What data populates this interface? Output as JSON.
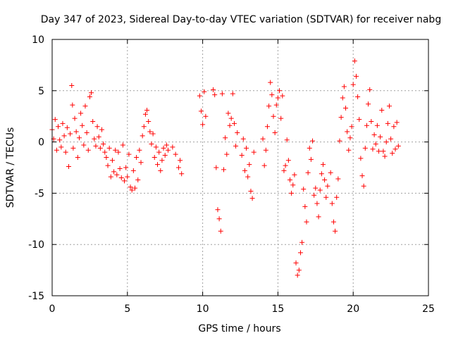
{
  "chart_data": {
    "type": "scatter",
    "title": "Day 347 of 2023, Sidereal Day-to-day VTEC variation (SDTVAR) for receiver nabg",
    "xlabel": "GPS time / hours",
    "ylabel": "SDTVAR / TECUs",
    "xlim": [
      0,
      25
    ],
    "ylim": [
      -15,
      10
    ],
    "grid": true,
    "x_ticks": [
      0,
      5,
      10,
      15,
      20,
      25
    ],
    "x_tick_labels": [
      "0",
      "5",
      "10",
      "15",
      "20",
      "25"
    ],
    "y_ticks": [
      -15,
      -10,
      -5,
      0,
      5,
      10
    ],
    "y_tick_labels": [
      "-15",
      "-10",
      "-5",
      "0",
      "5",
      "10"
    ],
    "marker": "+",
    "series": [
      {
        "name": "SDTVAR",
        "color": "#ff0000",
        "points": [
          [
            0.0,
            1.2
          ],
          [
            0.1,
            0.3
          ],
          [
            0.2,
            2.2
          ],
          [
            0.3,
            -0.8
          ],
          [
            0.4,
            1.5
          ],
          [
            0.5,
            0.2
          ],
          [
            0.6,
            -0.5
          ],
          [
            0.7,
            1.8
          ],
          [
            0.8,
            0.6
          ],
          [
            0.9,
            -1.0
          ],
          [
            1.0,
            1.4
          ],
          [
            1.1,
            -2.4
          ],
          [
            1.2,
            0.8
          ],
          [
            1.3,
            5.5
          ],
          [
            1.35,
            3.6
          ],
          [
            1.4,
            -0.6
          ],
          [
            1.5,
            2.3
          ],
          [
            1.6,
            1.0
          ],
          [
            1.7,
            -1.5
          ],
          [
            1.8,
            0.4
          ],
          [
            1.9,
            2.8
          ],
          [
            2.0,
            1.6
          ],
          [
            2.1,
            -0.3
          ],
          [
            2.2,
            3.5
          ],
          [
            2.3,
            0.9
          ],
          [
            2.4,
            -0.8
          ],
          [
            2.5,
            4.4
          ],
          [
            2.6,
            4.8
          ],
          [
            2.7,
            2.0
          ],
          [
            2.8,
            0.3
          ],
          [
            2.9,
            -0.4
          ],
          [
            3.0,
            1.5
          ],
          [
            3.1,
            0.5
          ],
          [
            3.2,
            -0.6
          ],
          [
            3.3,
            1.2
          ],
          [
            3.4,
            -0.2
          ],
          [
            3.5,
            -1.0
          ],
          [
            3.6,
            -1.5
          ],
          [
            3.7,
            -2.3
          ],
          [
            3.8,
            -0.6
          ],
          [
            3.9,
            -3.4
          ],
          [
            4.0,
            -1.8
          ],
          [
            4.1,
            -2.9
          ],
          [
            4.2,
            -0.8
          ],
          [
            4.3,
            -3.2
          ],
          [
            4.4,
            -1.0
          ],
          [
            4.5,
            -2.6
          ],
          [
            4.6,
            -3.5
          ],
          [
            4.7,
            -0.3
          ],
          [
            4.8,
            -3.8
          ],
          [
            4.9,
            -2.5
          ],
          [
            5.0,
            -3.4
          ],
          [
            5.1,
            -1.2
          ],
          [
            5.2,
            -4.4
          ],
          [
            5.3,
            -4.7
          ],
          [
            5.4,
            -2.8
          ],
          [
            5.5,
            -4.5
          ],
          [
            5.6,
            -1.5
          ],
          [
            5.7,
            -3.7
          ],
          [
            5.8,
            -0.8
          ],
          [
            5.9,
            -2.0
          ],
          [
            6.0,
            0.6
          ],
          [
            6.1,
            1.5
          ],
          [
            6.2,
            2.7
          ],
          [
            6.3,
            3.1
          ],
          [
            6.4,
            2.0
          ],
          [
            6.5,
            1.0
          ],
          [
            6.6,
            -0.2
          ],
          [
            6.7,
            0.8
          ],
          [
            6.8,
            -1.5
          ],
          [
            6.9,
            -0.5
          ],
          [
            7.0,
            -2.2
          ],
          [
            7.1,
            -1.0
          ],
          [
            7.2,
            -2.8
          ],
          [
            7.3,
            -1.8
          ],
          [
            7.4,
            -0.6
          ],
          [
            7.5,
            -1.3
          ],
          [
            7.6,
            -0.3
          ],
          [
            7.7,
            -0.8
          ],
          [
            8.0,
            -0.5
          ],
          [
            8.2,
            -1.2
          ],
          [
            8.4,
            -2.5
          ],
          [
            8.5,
            -1.8
          ],
          [
            8.6,
            -3.1
          ],
          [
            9.8,
            4.5
          ],
          [
            9.9,
            3.0
          ],
          [
            10.0,
            1.7
          ],
          [
            10.1,
            4.9
          ],
          [
            10.2,
            2.5
          ],
          [
            10.7,
            5.1
          ],
          [
            10.8,
            4.6
          ],
          [
            10.9,
            -2.5
          ],
          [
            11.0,
            -6.6
          ],
          [
            11.1,
            -7.5
          ],
          [
            11.2,
            -8.7
          ],
          [
            11.3,
            4.7
          ],
          [
            11.4,
            -2.7
          ],
          [
            11.5,
            0.4
          ],
          [
            11.6,
            -1.2
          ],
          [
            11.7,
            2.8
          ],
          [
            11.8,
            1.6
          ],
          [
            11.9,
            2.3
          ],
          [
            12.0,
            4.7
          ],
          [
            12.1,
            1.8
          ],
          [
            12.2,
            -0.4
          ],
          [
            12.3,
            0.9
          ],
          [
            12.6,
            -1.3
          ],
          [
            12.7,
            0.3
          ],
          [
            12.8,
            -2.8
          ],
          [
            12.9,
            -0.6
          ],
          [
            13.0,
            -3.4
          ],
          [
            13.1,
            -2.2
          ],
          [
            13.2,
            -4.8
          ],
          [
            13.3,
            -5.5
          ],
          [
            13.4,
            -1.0
          ],
          [
            14.0,
            0.3
          ],
          [
            14.1,
            -2.3
          ],
          [
            14.2,
            -0.8
          ],
          [
            14.3,
            1.5
          ],
          [
            14.4,
            3.5
          ],
          [
            14.5,
            5.8
          ],
          [
            14.6,
            4.6
          ],
          [
            14.7,
            2.5
          ],
          [
            14.8,
            0.9
          ],
          [
            14.9,
            3.6
          ],
          [
            15.0,
            4.3
          ],
          [
            15.1,
            5.0
          ],
          [
            15.2,
            2.3
          ],
          [
            15.3,
            4.5
          ],
          [
            15.4,
            -2.8
          ],
          [
            15.5,
            -2.3
          ],
          [
            15.6,
            0.2
          ],
          [
            15.7,
            -1.8
          ],
          [
            15.8,
            -3.7
          ],
          [
            15.9,
            -5.0
          ],
          [
            16.0,
            -4.2
          ],
          [
            16.1,
            -3.2
          ],
          [
            16.2,
            -11.8
          ],
          [
            16.3,
            -13.0
          ],
          [
            16.4,
            -12.5
          ],
          [
            16.5,
            -10.8
          ],
          [
            16.6,
            -9.8
          ],
          [
            16.7,
            -4.6
          ],
          [
            16.8,
            -6.3
          ],
          [
            16.9,
            -7.8
          ],
          [
            17.0,
            -3.0
          ],
          [
            17.1,
            -0.6
          ],
          [
            17.2,
            -1.7
          ],
          [
            17.3,
            0.1
          ],
          [
            17.4,
            -5.2
          ],
          [
            17.5,
            -4.5
          ],
          [
            17.6,
            -6.0
          ],
          [
            17.7,
            -7.3
          ],
          [
            17.8,
            -4.7
          ],
          [
            17.9,
            -3.1
          ],
          [
            18.0,
            -2.2
          ],
          [
            18.1,
            -3.7
          ],
          [
            18.2,
            -5.4
          ],
          [
            18.3,
            -4.3
          ],
          [
            18.5,
            -3.0
          ],
          [
            18.6,
            -6.0
          ],
          [
            18.7,
            -7.8
          ],
          [
            18.8,
            -8.7
          ],
          [
            18.9,
            -5.4
          ],
          [
            19.0,
            -3.6
          ],
          [
            19.1,
            0.1
          ],
          [
            19.2,
            2.4
          ],
          [
            19.3,
            4.3
          ],
          [
            19.4,
            5.4
          ],
          [
            19.5,
            3.3
          ],
          [
            19.6,
            1.0
          ],
          [
            19.7,
            -0.8
          ],
          [
            19.8,
            0.4
          ],
          [
            19.9,
            1.5
          ],
          [
            20.0,
            5.6
          ],
          [
            20.1,
            7.9
          ],
          [
            20.2,
            6.4
          ],
          [
            20.3,
            4.4
          ],
          [
            20.4,
            2.2
          ],
          [
            20.5,
            -1.6
          ],
          [
            20.6,
            -3.3
          ],
          [
            20.7,
            -4.3
          ],
          [
            20.8,
            -0.6
          ],
          [
            20.9,
            1.6
          ],
          [
            21.0,
            3.7
          ],
          [
            21.1,
            5.1
          ],
          [
            21.2,
            2.0
          ],
          [
            21.3,
            -0.7
          ],
          [
            21.4,
            0.7
          ],
          [
            21.5,
            -0.2
          ],
          [
            21.6,
            1.6
          ],
          [
            21.7,
            -0.9
          ],
          [
            21.8,
            0.5
          ],
          [
            21.9,
            3.1
          ],
          [
            22.0,
            -0.9
          ],
          [
            22.1,
            -1.4
          ],
          [
            22.2,
            0.0
          ],
          [
            22.3,
            1.8
          ],
          [
            22.4,
            3.5
          ],
          [
            22.5,
            0.3
          ],
          [
            22.6,
            -1.1
          ],
          [
            22.7,
            1.5
          ],
          [
            22.8,
            -0.7
          ],
          [
            22.9,
            1.9
          ],
          [
            23.0,
            -0.4
          ]
        ]
      }
    ]
  }
}
